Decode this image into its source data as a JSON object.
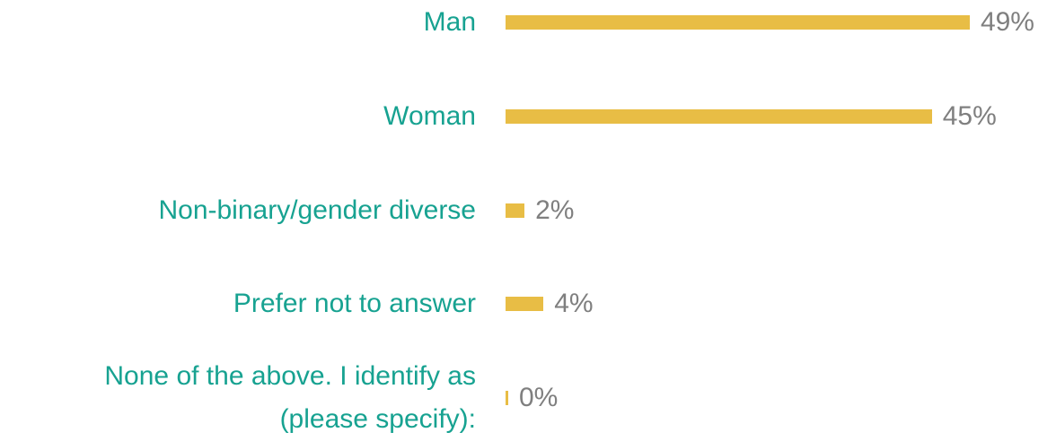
{
  "chart_data": {
    "type": "bar",
    "orientation": "horizontal",
    "color": "#e8bd45",
    "categories": [
      "Man",
      "Woman",
      "Non-binary/gender diverse",
      "Prefer not to answer",
      "None of the above. I identify as\n(please specify):"
    ],
    "values": [
      49,
      45,
      2,
      4,
      0
    ],
    "value_labels": [
      "49%",
      "45%",
      "2%",
      "4%",
      "0%"
    ]
  }
}
